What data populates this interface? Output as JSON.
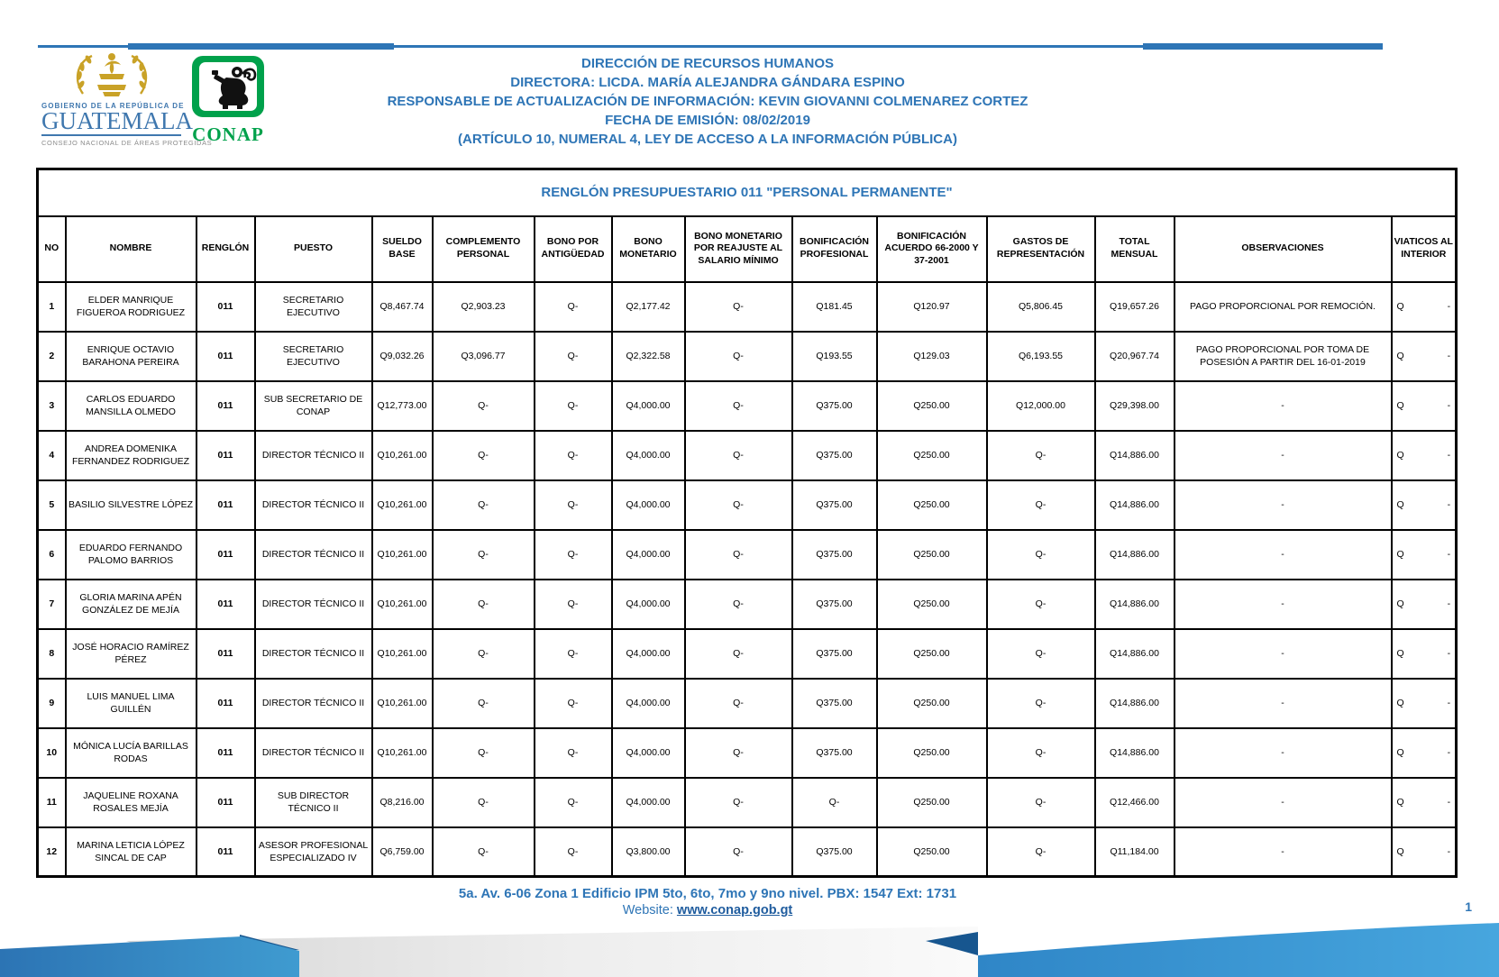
{
  "header": {
    "lines": [
      "DIRECCIÓN DE RECURSOS HUMANOS",
      "DIRECTORA: LICDA. MARÍA ALEJANDRA GÁNDARA ESPINO",
      "RESPONSABLE DE ACTUALIZACIÓN DE INFORMACIÓN: KEVIN GIOVANNI COLMENAREZ CORTEZ",
      "FECHA DE EMISIÓN: 08/02/2019",
      "(ARTÍCULO 10, NUMERAL 4, LEY DE ACCESO A LA INFORMACIÓN PÚBLICA)"
    ]
  },
  "logos": {
    "guatemala": {
      "top_label": "GOBIERNO DE LA REPÚBLICA DE",
      "name": "GUATEMALA",
      "subtitle": "CONSEJO NACIONAL DE ÁREAS PROTEGIDAS"
    },
    "conap": {
      "name": "CONAP"
    }
  },
  "table": {
    "title": "RENGLÓN PRESUPUESTARIO 011 \"PERSONAL PERMANENTE\"",
    "columns": [
      "NO",
      "NOMBRE",
      "RENGLÓN",
      "PUESTO",
      "SUELDO BASE",
      "COMPLEMENTO PERSONAL",
      "BONO POR ANTIGÜEDAD",
      "BONO MONETARIO",
      "BONO MONETARIO POR REAJUSTE AL SALARIO MÍNIMO",
      "BONIFICACIÓN PROFESIONAL",
      "BONIFICACIÓN ACUERDO 66-2000 Y 37-2001",
      "GASTOS DE REPRESENTACIÓN",
      "TOTAL MENSUAL",
      "OBSERVACIONES",
      "VIATICOS AL INTERIOR"
    ],
    "rows": [
      {
        "no": "1",
        "nombre": "ELDER MANRIQUE FIGUEROA RODRIGUEZ",
        "renglon": "011",
        "puesto": "SECRETARIO EJECUTIVO",
        "sueldo_base": "Q8,467.74",
        "complemento_personal": "Q2,903.23",
        "bono_antiguedad": "Q-",
        "bono_monetario": "Q2,177.42",
        "bono_reajuste": "Q-",
        "bonificacion_profesional": "Q181.45",
        "bonificacion_acuerdo": "Q120.97",
        "gastos_representacion": "Q5,806.45",
        "total_mensual": "Q19,657.26",
        "observaciones": "PAGO PROPORCIONAL POR REMOCIÓN.",
        "viaticos_q": "Q",
        "viaticos_val": "-"
      },
      {
        "no": "2",
        "nombre": "ENRIQUE OCTAVIO BARAHONA PEREIRA",
        "renglon": "011",
        "puesto": "SECRETARIO EJECUTIVO",
        "sueldo_base": "Q9,032.26",
        "complemento_personal": "Q3,096.77",
        "bono_antiguedad": "Q-",
        "bono_monetario": "Q2,322.58",
        "bono_reajuste": "Q-",
        "bonificacion_profesional": "Q193.55",
        "bonificacion_acuerdo": "Q129.03",
        "gastos_representacion": "Q6,193.55",
        "total_mensual": "Q20,967.74",
        "observaciones": "PAGO PROPORCIONAL POR TOMA DE POSESIÓN A PARTIR DEL 16-01-2019",
        "viaticos_q": "Q",
        "viaticos_val": "-"
      },
      {
        "no": "3",
        "nombre": "CARLOS EDUARDO MANSILLA OLMEDO",
        "renglon": "011",
        "puesto": "SUB SECRETARIO DE CONAP",
        "sueldo_base": "Q12,773.00",
        "complemento_personal": "Q-",
        "bono_antiguedad": "Q-",
        "bono_monetario": "Q4,000.00",
        "bono_reajuste": "Q-",
        "bonificacion_profesional": "Q375.00",
        "bonificacion_acuerdo": "Q250.00",
        "gastos_representacion": "Q12,000.00",
        "total_mensual": "Q29,398.00",
        "observaciones": "-",
        "viaticos_q": "Q",
        "viaticos_val": "-"
      },
      {
        "no": "4",
        "nombre": "ANDREA DOMENIKA FERNANDEZ RODRIGUEZ",
        "renglon": "011",
        "puesto": "DIRECTOR TÉCNICO II",
        "sueldo_base": "Q10,261.00",
        "complemento_personal": "Q-",
        "bono_antiguedad": "Q-",
        "bono_monetario": "Q4,000.00",
        "bono_reajuste": "Q-",
        "bonificacion_profesional": "Q375.00",
        "bonificacion_acuerdo": "Q250.00",
        "gastos_representacion": "Q-",
        "total_mensual": "Q14,886.00",
        "observaciones": "-",
        "viaticos_q": "Q",
        "viaticos_val": "-"
      },
      {
        "no": "5",
        "nombre": "BASILIO SILVESTRE LÓPEZ",
        "renglon": "011",
        "puesto": "DIRECTOR TÉCNICO II",
        "sueldo_base": "Q10,261.00",
        "complemento_personal": "Q-",
        "bono_antiguedad": "Q-",
        "bono_monetario": "Q4,000.00",
        "bono_reajuste": "Q-",
        "bonificacion_profesional": "Q375.00",
        "bonificacion_acuerdo": "Q250.00",
        "gastos_representacion": "Q-",
        "total_mensual": "Q14,886.00",
        "observaciones": "-",
        "viaticos_q": "Q",
        "viaticos_val": "-"
      },
      {
        "no": "6",
        "nombre": "EDUARDO FERNANDO PALOMO BARRIOS",
        "renglon": "011",
        "puesto": "DIRECTOR TÉCNICO II",
        "sueldo_base": "Q10,261.00",
        "complemento_personal": "Q-",
        "bono_antiguedad": "Q-",
        "bono_monetario": "Q4,000.00",
        "bono_reajuste": "Q-",
        "bonificacion_profesional": "Q375.00",
        "bonificacion_acuerdo": "Q250.00",
        "gastos_representacion": "Q-",
        "total_mensual": "Q14,886.00",
        "observaciones": "-",
        "viaticos_q": "Q",
        "viaticos_val": "-"
      },
      {
        "no": "7",
        "nombre": "GLORIA MARINA APÉN GONZÁLEZ DE MEJÍA",
        "renglon": "011",
        "puesto": "DIRECTOR TÉCNICO II",
        "sueldo_base": "Q10,261.00",
        "complemento_personal": "Q-",
        "bono_antiguedad": "Q-",
        "bono_monetario": "Q4,000.00",
        "bono_reajuste": "Q-",
        "bonificacion_profesional": "Q375.00",
        "bonificacion_acuerdo": "Q250.00",
        "gastos_representacion": "Q-",
        "total_mensual": "Q14,886.00",
        "observaciones": "-",
        "viaticos_q": "Q",
        "viaticos_val": "-"
      },
      {
        "no": "8",
        "nombre": "JOSÉ HORACIO RAMÍREZ PÉREZ",
        "renglon": "011",
        "puesto": "DIRECTOR TÉCNICO II",
        "sueldo_base": "Q10,261.00",
        "complemento_personal": "Q-",
        "bono_antiguedad": "Q-",
        "bono_monetario": "Q4,000.00",
        "bono_reajuste": "Q-",
        "bonificacion_profesional": "Q375.00",
        "bonificacion_acuerdo": "Q250.00",
        "gastos_representacion": "Q-",
        "total_mensual": "Q14,886.00",
        "observaciones": "-",
        "viaticos_q": "Q",
        "viaticos_val": "-"
      },
      {
        "no": "9",
        "nombre": "LUIS MANUEL LIMA GUILLÉN",
        "renglon": "011",
        "puesto": "DIRECTOR TÉCNICO II",
        "sueldo_base": "Q10,261.00",
        "complemento_personal": "Q-",
        "bono_antiguedad": "Q-",
        "bono_monetario": "Q4,000.00",
        "bono_reajuste": "Q-",
        "bonificacion_profesional": "Q375.00",
        "bonificacion_acuerdo": "Q250.00",
        "gastos_representacion": "Q-",
        "total_mensual": "Q14,886.00",
        "observaciones": "-",
        "viaticos_q": "Q",
        "viaticos_val": "-"
      },
      {
        "no": "10",
        "nombre": "MÓNICA LUCÍA BARILLAS RODAS",
        "renglon": "011",
        "puesto": "DIRECTOR TÉCNICO II",
        "sueldo_base": "Q10,261.00",
        "complemento_personal": "Q-",
        "bono_antiguedad": "Q-",
        "bono_monetario": "Q4,000.00",
        "bono_reajuste": "Q-",
        "bonificacion_profesional": "Q375.00",
        "bonificacion_acuerdo": "Q250.00",
        "gastos_representacion": "Q-",
        "total_mensual": "Q14,886.00",
        "observaciones": "-",
        "viaticos_q": "Q",
        "viaticos_val": "-"
      },
      {
        "no": "11",
        "nombre": "JAQUELINE ROXANA ROSALES MEJÍA",
        "renglon": "011",
        "puesto": "SUB DIRECTOR TÉCNICO II",
        "sueldo_base": "Q8,216.00",
        "complemento_personal": "Q-",
        "bono_antiguedad": "Q-",
        "bono_monetario": "Q4,000.00",
        "bono_reajuste": "Q-",
        "bonificacion_profesional": "Q-",
        "bonificacion_acuerdo": "Q250.00",
        "gastos_representacion": "Q-",
        "total_mensual": "Q12,466.00",
        "observaciones": "-",
        "viaticos_q": "Q",
        "viaticos_val": "-"
      },
      {
        "no": "12",
        "nombre": "MARINA LETICIA LÓPEZ SINCAL DE CAP",
        "renglon": "011",
        "puesto": "ASESOR PROFESIONAL ESPECIALIZADO IV",
        "sueldo_base": "Q6,759.00",
        "complemento_personal": "Q-",
        "bono_antiguedad": "Q-",
        "bono_monetario": "Q3,800.00",
        "bono_reajuste": "Q-",
        "bonificacion_profesional": "Q375.00",
        "bonificacion_acuerdo": "Q250.00",
        "gastos_representacion": "Q-",
        "total_mensual": "Q11,184.00",
        "observaciones": "-",
        "viaticos_q": "Q",
        "viaticos_val": "-"
      }
    ]
  },
  "footer": {
    "address": "5a. Av. 6-06 Zona 1 Edificio IPM 5to, 6to, 7mo y 9no nivel. PBX: 1547 Ext: 1731",
    "website_label": "Website: ",
    "website_url": "www.conap.gob.gt",
    "page_number": "1"
  },
  "colors": {
    "accent_blue": "#2E75B6",
    "guatemala_blue": "#3F77AE",
    "conap_green": "#00A14B",
    "emblem_gold": "#C9A227",
    "table_border": "#000000"
  }
}
